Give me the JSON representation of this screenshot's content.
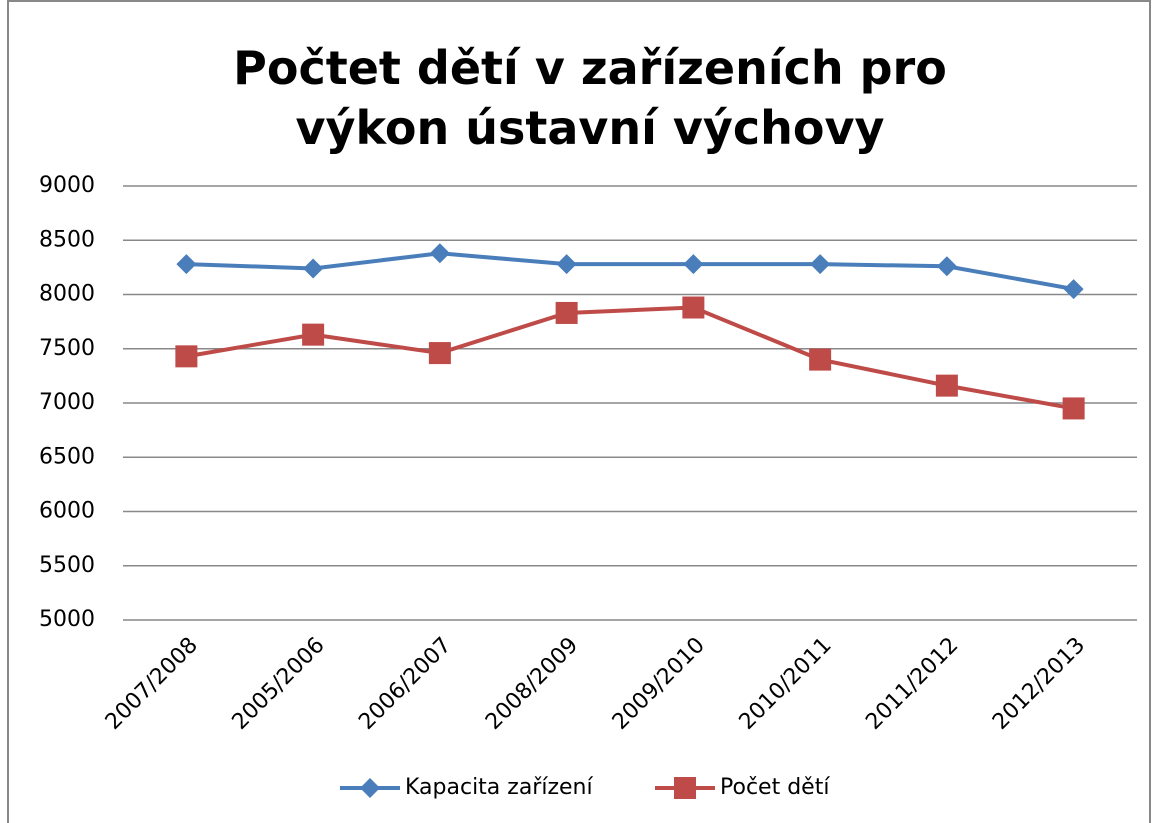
{
  "chart_data": {
    "type": "line",
    "title": "Počtet dětí v zařízeních pro výkon ústavní výchovy",
    "categories": [
      "2007/2008",
      "2005/2006",
      "2006/2007",
      "2008/2009",
      "2009/2010",
      "2010/2011",
      "2011/2012",
      "2012/2013"
    ],
    "series": [
      {
        "name": "Kapacita zařízení",
        "color": "#4a7ebb",
        "marker": "diamond",
        "values": [
          8280,
          8240,
          8380,
          8280,
          8280,
          8280,
          8260,
          8050
        ]
      },
      {
        "name": "Počet dětí",
        "color": "#be4b48",
        "marker": "square",
        "values": [
          7430,
          7630,
          7460,
          7830,
          7880,
          7400,
          7160,
          6950
        ]
      }
    ],
    "ylim": [
      5000,
      9000
    ],
    "yticks": [
      5000,
      5500,
      6000,
      6500,
      7000,
      7500,
      8000,
      8500,
      9000
    ],
    "grid": true,
    "legend": "bottom"
  }
}
